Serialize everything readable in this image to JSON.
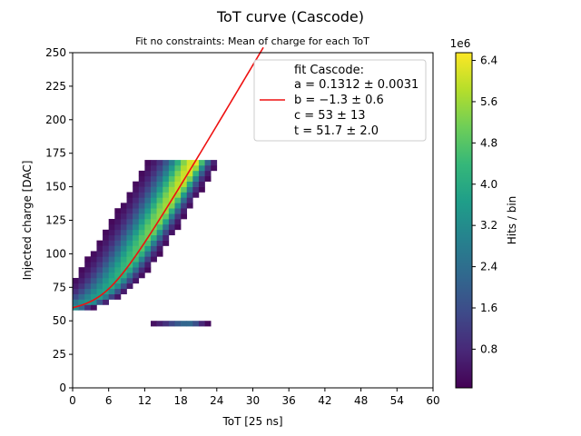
{
  "chart_data": {
    "type": "heatmap",
    "title": "ToT curve (Cascode)",
    "subtitle": "Fit no constraints: Mean of charge for each ToT",
    "xlabel": "ToT [25 ns]",
    "ylabel": "Injected charge [DAC]",
    "xlim": [
      0,
      60
    ],
    "ylim": [
      0,
      250
    ],
    "xticks": [
      "0",
      "6",
      "12",
      "18",
      "24",
      "30",
      "36",
      "42",
      "48",
      "54",
      "60"
    ],
    "yticks": [
      "0",
      "25",
      "50",
      "75",
      "100",
      "125",
      "150",
      "175",
      "200",
      "225",
      "250"
    ],
    "colorbar": {
      "label": "Hits / bin",
      "offset_text": "1e6",
      "ticks": [
        "0.8",
        "1.6",
        "2.4",
        "3.2",
        "4.0",
        "4.8",
        "5.6",
        "6.4"
      ],
      "range": [
        0.05,
        6.55
      ],
      "colormap": "viridis"
    },
    "histogram": {
      "x_bin_width": 1,
      "y_bin_width": 4,
      "charge_max": 168,
      "tot_max": 24,
      "peak_hits_1e6": 6.4,
      "band_width": [
        3.0,
        1.5
      ],
      "band_shape": "skewed"
    },
    "fit": {
      "name": "fit Cascode:",
      "color": "#ee1111",
      "params": {
        "a": 0.1312,
        "b": -1.3,
        "c": 53,
        "t": 51.7
      },
      "legend_lines": [
        "a = 0.1312 ± 0.0031",
        "b = −1.3 ± 0.6",
        "c = 53 ± 13",
        "t = 51.7 ± 2.0"
      ]
    },
    "legend_position": "upper-right"
  }
}
